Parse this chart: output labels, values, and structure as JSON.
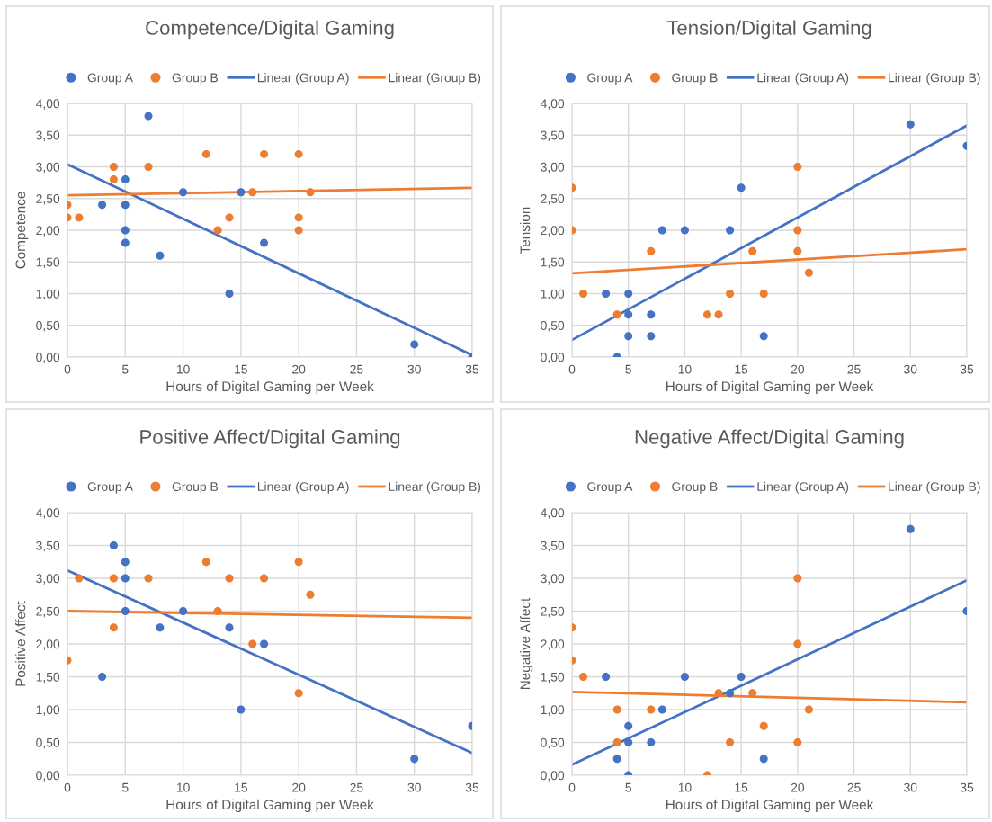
{
  "chart_data": [
    {
      "type": "scatter",
      "title": "Competence/Digital Gaming",
      "xlabel": "Hours of Digital Gaming per Week",
      "ylabel": "Competence",
      "marker": "circle",
      "grid": true,
      "legend": "top",
      "xlim": [
        0,
        35
      ],
      "xticks": [
        0,
        5,
        10,
        15,
        20,
        25,
        30,
        35
      ],
      "ylim": [
        0,
        4
      ],
      "yticks": [
        {
          "value": 0,
          "label": "0,00"
        },
        {
          "value": 0.5,
          "label": "0,50"
        },
        {
          "value": 1,
          "label": "1,00"
        },
        {
          "value": 1.5,
          "label": "1,50"
        },
        {
          "value": 2,
          "label": "2,00"
        },
        {
          "value": 2.5,
          "label": "2,50"
        },
        {
          "value": 3,
          "label": "3,00"
        },
        {
          "value": 3.5,
          "label": "3,50"
        },
        {
          "value": 4,
          "label": "4,00"
        }
      ],
      "series": [
        {
          "name": "Group A",
          "color": "#4472c4",
          "x": [
            3,
            5,
            5,
            5,
            5,
            7,
            8,
            10,
            14,
            15,
            17,
            30,
            35
          ],
          "values": [
            2.4,
            2.8,
            2.4,
            2.0,
            1.8,
            3.8,
            1.6,
            2.6,
            1.0,
            2.6,
            1.8,
            0.2,
            0.0
          ]
        },
        {
          "name": "Group B",
          "color": "#ed7d31",
          "x": [
            0,
            0,
            1,
            4,
            4,
            7,
            12,
            13,
            14,
            16,
            17,
            20,
            20,
            20,
            21
          ],
          "values": [
            2.4,
            2.2,
            2.2,
            3.0,
            2.8,
            3.0,
            3.2,
            2.0,
            2.2,
            2.6,
            3.2,
            3.2,
            2.2,
            2.0,
            2.6
          ]
        },
        {
          "name": "Linear (Group A)",
          "type": "line",
          "marker": "none",
          "line_style": "solid",
          "color": "#4472c4",
          "x": [
            0,
            35
          ],
          "values": [
            3.04,
            0.03
          ]
        },
        {
          "name": "Linear (Group B)",
          "type": "line",
          "marker": "none",
          "line_style": "solid",
          "color": "#ed7d31",
          "x": [
            0,
            35
          ],
          "values": [
            2.55,
            2.67
          ]
        }
      ]
    },
    {
      "type": "scatter",
      "title": "Tension/Digital Gaming",
      "xlabel": "Hours of Digital Gaming per Week",
      "ylabel": "Tension",
      "marker": "circle",
      "grid": true,
      "legend": "top",
      "xlim": [
        0,
        35
      ],
      "xticks": [
        0,
        5,
        10,
        15,
        20,
        25,
        30,
        35
      ],
      "ylim": [
        0,
        4
      ],
      "yticks": [
        {
          "value": 0,
          "label": "0,00"
        },
        {
          "value": 0.5,
          "label": "0,50"
        },
        {
          "value": 1,
          "label": "1,00"
        },
        {
          "value": 1.5,
          "label": "1,50"
        },
        {
          "value": 2,
          "label": "2,00"
        },
        {
          "value": 2.5,
          "label": "2,50"
        },
        {
          "value": 3,
          "label": "3,00"
        },
        {
          "value": 3.5,
          "label": "3,50"
        },
        {
          "value": 4,
          "label": "4,00"
        }
      ],
      "series": [
        {
          "name": "Group A",
          "color": "#4472c4",
          "x": [
            3,
            4,
            5,
            5,
            5,
            7,
            7,
            8,
            10,
            14,
            15,
            17,
            30,
            35
          ],
          "values": [
            1.0,
            0.0,
            1.0,
            0.67,
            0.33,
            0.67,
            0.33,
            2.0,
            2.0,
            2.0,
            2.67,
            0.33,
            3.67,
            3.33
          ]
        },
        {
          "name": "Group B",
          "color": "#ed7d31",
          "x": [
            0,
            0,
            1,
            4,
            7,
            12,
            13,
            14,
            16,
            17,
            20,
            20,
            20,
            21
          ],
          "values": [
            2.67,
            2.0,
            1.0,
            0.67,
            1.67,
            0.67,
            0.67,
            1.0,
            1.67,
            1.0,
            3.0,
            2.0,
            1.67,
            1.33
          ]
        },
        {
          "name": "Linear (Group A)",
          "type": "line",
          "marker": "none",
          "line_style": "solid",
          "color": "#4472c4",
          "x": [
            0,
            35
          ],
          "values": [
            0.27,
            3.65
          ]
        },
        {
          "name": "Linear (Group B)",
          "type": "line",
          "marker": "none",
          "line_style": "solid",
          "color": "#ed7d31",
          "x": [
            0,
            35
          ],
          "values": [
            1.32,
            1.7
          ]
        }
      ]
    },
    {
      "type": "scatter",
      "title": "Positive Affect/Digital Gaming",
      "xlabel": "Hours of Digital Gaming per Week",
      "ylabel": "Positive Affect",
      "marker": "circle",
      "grid": true,
      "legend": "top",
      "xlim": [
        0,
        35
      ],
      "xticks": [
        0,
        5,
        10,
        15,
        20,
        25,
        30,
        35
      ],
      "ylim": [
        0,
        4
      ],
      "yticks": [
        {
          "value": 0,
          "label": "0,00"
        },
        {
          "value": 0.5,
          "label": "0,50"
        },
        {
          "value": 1,
          "label": "1,00"
        },
        {
          "value": 1.5,
          "label": "1,50"
        },
        {
          "value": 2,
          "label": "2,00"
        },
        {
          "value": 2.5,
          "label": "2,50"
        },
        {
          "value": 3,
          "label": "3,00"
        },
        {
          "value": 3.5,
          "label": "3,50"
        },
        {
          "value": 4,
          "label": "4,00"
        }
      ],
      "series": [
        {
          "name": "Group A",
          "color": "#4472c4",
          "x": [
            3,
            4,
            5,
            5,
            5,
            8,
            10,
            14,
            15,
            17,
            30,
            35
          ],
          "values": [
            1.5,
            3.5,
            3.25,
            3.0,
            2.5,
            2.25,
            2.5,
            2.25,
            1.0,
            2.0,
            0.25,
            0.75
          ]
        },
        {
          "name": "Group B",
          "color": "#ed7d31",
          "x": [
            0,
            1,
            4,
            4,
            7,
            12,
            13,
            14,
            16,
            17,
            20,
            20,
            21
          ],
          "values": [
            1.75,
            3.0,
            3.0,
            2.25,
            3.0,
            3.25,
            2.5,
            3.0,
            2.0,
            3.0,
            3.25,
            1.25,
            2.75
          ]
        },
        {
          "name": "Linear (Group A)",
          "type": "line",
          "marker": "none",
          "line_style": "solid",
          "color": "#4472c4",
          "x": [
            0,
            35
          ],
          "values": [
            3.12,
            0.34
          ]
        },
        {
          "name": "Linear (Group B)",
          "type": "line",
          "marker": "none",
          "line_style": "solid",
          "color": "#ed7d31",
          "x": [
            0,
            35
          ],
          "values": [
            2.5,
            2.4
          ]
        }
      ]
    },
    {
      "type": "scatter",
      "title": "Negative Affect/Digital Gaming",
      "xlabel": "Hours of Digital Gaming per Week",
      "ylabel": "Negative Affect",
      "marker": "circle",
      "grid": true,
      "legend": "top",
      "xlim": [
        0,
        35
      ],
      "xticks": [
        0,
        5,
        10,
        15,
        20,
        25,
        30,
        35
      ],
      "ylim": [
        0,
        4
      ],
      "yticks": [
        {
          "value": 0,
          "label": "0,00"
        },
        {
          "value": 0.5,
          "label": "0,50"
        },
        {
          "value": 1,
          "label": "1,00"
        },
        {
          "value": 1.5,
          "label": "1,50"
        },
        {
          "value": 2,
          "label": "2,00"
        },
        {
          "value": 2.5,
          "label": "2,50"
        },
        {
          "value": 3,
          "label": "3,00"
        },
        {
          "value": 3.5,
          "label": "3,50"
        },
        {
          "value": 4,
          "label": "4,00"
        }
      ],
      "series": [
        {
          "name": "Group A",
          "color": "#4472c4",
          "x": [
            3,
            4,
            5,
            5,
            5,
            7,
            8,
            10,
            14,
            15,
            17,
            30,
            35
          ],
          "values": [
            1.5,
            0.25,
            0.75,
            0.5,
            0.0,
            0.5,
            1.0,
            1.5,
            1.25,
            1.5,
            0.25,
            3.75,
            2.5
          ]
        },
        {
          "name": "Group B",
          "color": "#ed7d31",
          "x": [
            0,
            0,
            1,
            4,
            4,
            7,
            12,
            13,
            14,
            16,
            17,
            20,
            20,
            20,
            21
          ],
          "values": [
            2.25,
            1.75,
            1.5,
            1.0,
            0.5,
            1.0,
            0.0,
            1.25,
            0.5,
            1.25,
            0.75,
            3.0,
            2.0,
            0.5,
            1.0
          ]
        },
        {
          "name": "Linear (Group A)",
          "type": "line",
          "marker": "none",
          "line_style": "solid",
          "color": "#4472c4",
          "x": [
            0,
            35
          ],
          "values": [
            0.16,
            2.97
          ]
        },
        {
          "name": "Linear (Group B)",
          "type": "line",
          "marker": "none",
          "line_style": "solid",
          "color": "#ed7d31",
          "x": [
            0,
            35
          ],
          "values": [
            1.27,
            1.11
          ]
        }
      ]
    }
  ]
}
